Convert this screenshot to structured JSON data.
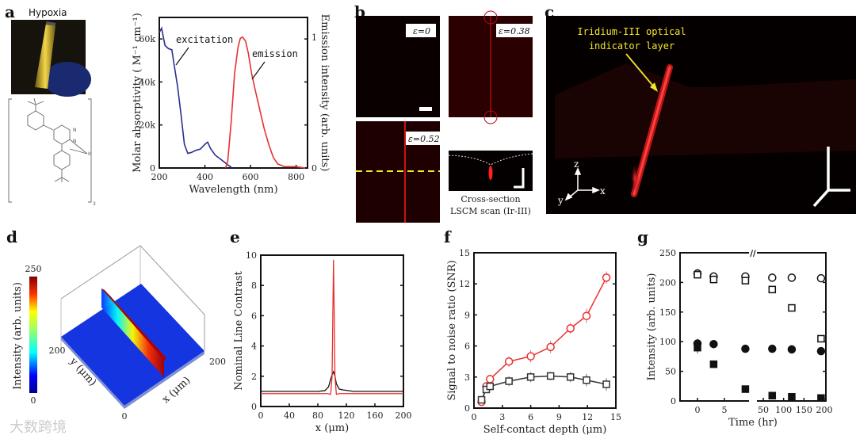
{
  "panel_labels": {
    "a": "a",
    "b": "b",
    "c": "c",
    "d": "d",
    "e": "e",
    "f": "f",
    "g": "g"
  },
  "panel_a": {
    "photo_title": "Hypoxia",
    "structure": {
      "atom_n1": "N",
      "atom_n2": "N",
      "metal": "Ir",
      "subscript": "3"
    },
    "annotation_excitation": "excitation",
    "annotation_emission": "emission"
  },
  "panel_b": {
    "labels": [
      "ε=0",
      "ε=0.38",
      "ε=0.52"
    ],
    "caption_line1": "Cross-section",
    "caption_line2": "LSCM scan (Ir-III)"
  },
  "panel_c": {
    "annotation_line1": "Iridium-III optical",
    "annotation_line2": "indicator layer",
    "axis_z": "z",
    "axis_x": "x",
    "axis_y": "y"
  },
  "panel_d": {
    "colorbar_label": "Intensity (arb. units)",
    "colorbar_max": "250",
    "colorbar_min": "0",
    "y_axis_label": "y (μm)",
    "x_axis_label": "x (μm)",
    "y_tick": "200",
    "x_tick": "200",
    "origin_tick": "0"
  },
  "watermark": "大数跨境",
  "colors": {
    "blue": "#2b2f8f",
    "red": "#e8312f",
    "black": "#111111",
    "yellow": "#f2e62a"
  },
  "chart_data": [
    {
      "id": "a",
      "type": "line",
      "xlabel": "Wavelength (nm)",
      "ylabel": "Molar absorptivity ( M⁻¹ cm⁻¹)",
      "y2label": "Emission intensity (arb. units)",
      "xlim": [
        200,
        850
      ],
      "ylim": [
        0,
        70000
      ],
      "y2lim": [
        0,
        1.15
      ],
      "xticks": [
        "200",
        "400",
        "600",
        "800"
      ],
      "xtick_values": [
        200,
        400,
        600,
        800
      ],
      "yticks": [
        "0",
        "20k",
        "40k",
        "60k"
      ],
      "ytick_values": [
        0,
        20000,
        40000,
        60000
      ],
      "y2ticks": [
        "0",
        "1"
      ],
      "y2tick_values": [
        0,
        1
      ],
      "series": [
        {
          "name": "excitation",
          "axis": "left",
          "color": "#2b2f8f",
          "x": [
            200,
            210,
            225,
            240,
            255,
            265,
            280,
            295,
            310,
            325,
            340,
            360,
            380,
            400,
            412,
            425,
            445,
            470,
            500,
            520
          ],
          "y": [
            63000,
            65000,
            57000,
            55500,
            55000,
            48000,
            38000,
            25000,
            11000,
            6800,
            7200,
            8200,
            8800,
            11000,
            12000,
            9000,
            6000,
            4000,
            1500,
            0
          ]
        },
        {
          "name": "emission",
          "axis": "right",
          "color": "#e8312f",
          "x": [
            490,
            500,
            515,
            530,
            545,
            555,
            565,
            578,
            590,
            605,
            620,
            640,
            660,
            680,
            700,
            720,
            750,
            800,
            840
          ],
          "y": [
            0,
            0.05,
            0.35,
            0.72,
            0.92,
            0.99,
            1.0,
            0.97,
            0.88,
            0.72,
            0.6,
            0.45,
            0.3,
            0.18,
            0.08,
            0.03,
            0.01,
            0.01,
            0
          ]
        }
      ]
    },
    {
      "id": "e",
      "type": "line",
      "xlabel": "x (μm)",
      "ylabel": "Nominal Line Contrast",
      "xlim": [
        0,
        200
      ],
      "ylim": [
        0,
        10
      ],
      "xticks": [
        "0",
        "40",
        "80",
        "120",
        "160",
        "200"
      ],
      "xtick_values": [
        0,
        40,
        80,
        120,
        160,
        200
      ],
      "yticks": [
        "0",
        "2",
        "4",
        "6",
        "8",
        "10"
      ],
      "ytick_values": [
        0,
        2,
        4,
        6,
        8,
        10
      ],
      "series": [
        {
          "name": "black",
          "color": "#111111",
          "x": [
            0,
            80,
            90,
            95,
            98,
            100,
            102,
            104,
            106,
            110,
            115,
            130,
            200
          ],
          "y": [
            1.0,
            1.0,
            1.05,
            1.3,
            1.8,
            2.1,
            2.3,
            2.0,
            1.5,
            1.15,
            1.1,
            1.0,
            1.0
          ]
        },
        {
          "name": "red",
          "color": "#e8312f",
          "x": [
            0,
            94,
            98,
            100,
            101,
            102,
            103,
            104,
            106,
            110,
            200
          ],
          "y": [
            0.85,
            0.85,
            0.8,
            2.0,
            6.0,
            9.7,
            6.0,
            2.0,
            0.8,
            0.85,
            0.85
          ]
        }
      ]
    },
    {
      "id": "f",
      "type": "line",
      "xlabel": "Self-contact depth (μm)",
      "ylabel": "Signal to noise ratio (SNR)",
      "xlim": [
        0,
        15
      ],
      "ylim": [
        0,
        15
      ],
      "xticks": [
        "0",
        "3",
        "6",
        "9",
        "12",
        "15"
      ],
      "xtick_values": [
        0,
        3,
        6,
        9,
        12,
        15
      ],
      "yticks": [
        "0",
        "3",
        "6",
        "9",
        "12",
        "15"
      ],
      "ytick_values": [
        0,
        3,
        6,
        9,
        12,
        15
      ],
      "series": [
        {
          "name": "red circles",
          "color": "#e8312f",
          "marker": "circle",
          "x": [
            0.8,
            1.3,
            1.7,
            3.7,
            6.0,
            8.1,
            10.2,
            11.9,
            14.0
          ],
          "y": [
            0.6,
            2.1,
            2.8,
            4.5,
            5.0,
            5.9,
            7.7,
            8.9,
            12.6
          ],
          "err": [
            0.3,
            0.4,
            0.4,
            0.5,
            0.6,
            0.6,
            0.5,
            0.7,
            0.6
          ]
        },
        {
          "name": "black squares",
          "color": "#333333",
          "marker": "square",
          "x": [
            0.8,
            1.3,
            1.7,
            3.7,
            6.0,
            8.1,
            10.2,
            11.9,
            14.0
          ],
          "y": [
            0.8,
            1.8,
            2.1,
            2.6,
            3.0,
            3.1,
            3.0,
            2.7,
            2.3
          ],
          "err": [
            0.2,
            0.3,
            0.3,
            0.5,
            0.5,
            0.4,
            0.5,
            0.6,
            0.6
          ]
        }
      ]
    },
    {
      "id": "g",
      "type": "scatter",
      "xlabel": "Time (hr)",
      "ylabel": "Intensity (arb. units)",
      "ylim": [
        0,
        250
      ],
      "x_break": [
        5,
        50
      ],
      "xticks": [
        "0",
        "5",
        "50",
        "100",
        "150",
        "200"
      ],
      "xtick_values": [
        0,
        5,
        50,
        100,
        150,
        200
      ],
      "yticks": [
        "0",
        "50",
        "100",
        "150",
        "200",
        "250"
      ],
      "ytick_values": [
        0,
        50,
        100,
        150,
        200,
        250
      ],
      "series": [
        {
          "name": "open circle",
          "marker": "circle",
          "filled": false,
          "x": [
            0,
            3,
            6,
            72,
            120,
            192
          ],
          "y": [
            215,
            210,
            210,
            208,
            208,
            207
          ],
          "err": [
            8,
            5,
            5,
            3,
            3,
            3
          ]
        },
        {
          "name": "open square",
          "marker": "square",
          "filled": false,
          "x": [
            0,
            3,
            6,
            72,
            120,
            192
          ],
          "y": [
            213,
            205,
            203,
            188,
            157,
            105
          ],
          "err": [
            5,
            4,
            4,
            5,
            5,
            5
          ]
        },
        {
          "name": "filled circle",
          "marker": "circle",
          "filled": true,
          "x": [
            0,
            3,
            6,
            72,
            120,
            192
          ],
          "y": [
            97,
            96,
            88,
            88,
            87,
            84
          ],
          "err": [
            8,
            4,
            5,
            5,
            5,
            6
          ]
        },
        {
          "name": "filled square",
          "marker": "square",
          "filled": true,
          "x": [
            0,
            3,
            6,
            72,
            120,
            192
          ],
          "y": [
            90,
            62,
            20,
            9,
            7,
            5
          ],
          "err": [
            10,
            4,
            3,
            1,
            1,
            1
          ]
        }
      ]
    }
  ]
}
